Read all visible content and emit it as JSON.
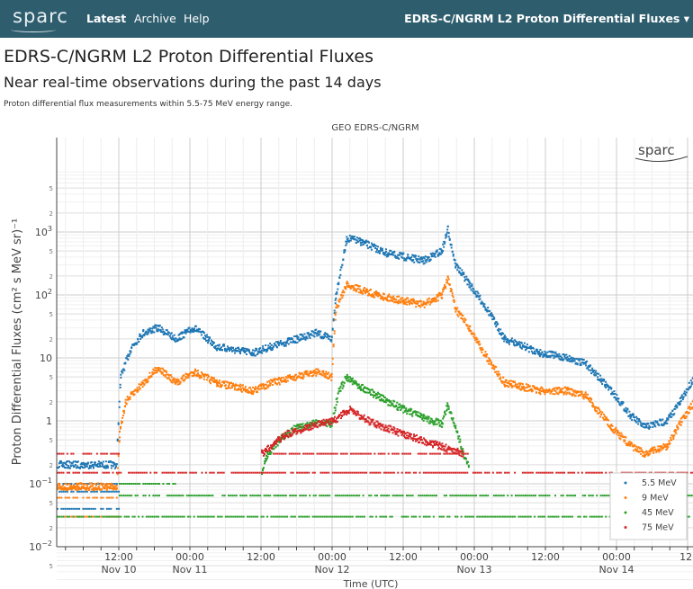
{
  "nav": {
    "logo": "sparc",
    "links": [
      "Latest",
      "Archive",
      "Help"
    ],
    "right_title": "EDRS-C/NGRM L2 Proton Differential Fluxes ▾"
  },
  "page": {
    "title": "EDRS-C/NGRM L2 Proton Differential Fluxes",
    "subtitle": "Near real-time observations during the past 14 days",
    "description": "Proton differential flux measurements within 5.5-75 MeV energy range."
  },
  "chart_data": {
    "type": "scatter",
    "title": "GEO EDRS-C/NGRM",
    "xlabel": "Time (UTC)",
    "ylabel": "Proton Differential Fluxes (cm² s MeV sr)⁻¹",
    "yscale": "log",
    "ylim": [
      0.001,
      3000
    ],
    "x_unit": "hours since Nov 10 00:00 UTC",
    "xlim": [
      1.5,
      109
    ],
    "x_ticks": [
      {
        "h": 12,
        "l1": "12:00",
        "l2": "Nov 10"
      },
      {
        "h": 24,
        "l1": "00:00",
        "l2": "Nov 11"
      },
      {
        "h": 36,
        "l1": "12:00",
        "l2": ""
      },
      {
        "h": 48,
        "l1": "00:00",
        "l2": "Nov 12"
      },
      {
        "h": 60,
        "l1": "12:00",
        "l2": ""
      },
      {
        "h": 72,
        "l1": "00:00",
        "l2": "Nov 13"
      },
      {
        "h": 84,
        "l1": "12:00",
        "l2": ""
      },
      {
        "h": 96,
        "l1": "00:00",
        "l2": "Nov 14"
      },
      {
        "h": 108,
        "l1": "12:",
        "l2": ""
      }
    ],
    "y_ticks": [
      {
        "v": 0.001,
        "b": "10",
        "e": "−3"
      },
      {
        "v": 0.01,
        "b": "10",
        "e": "−2"
      },
      {
        "v": 0.1,
        "b": "10",
        "e": "−1"
      },
      {
        "v": 1,
        "b": "1",
        "e": ""
      },
      {
        "v": 10,
        "b": "10",
        "e": ""
      },
      {
        "v": 100,
        "b": "10",
        "e": "2"
      },
      {
        "v": 1000,
        "b": "10",
        "e": "3"
      }
    ],
    "legend_position": "bottom-right",
    "grid": true,
    "watermark": "sparc",
    "series": [
      {
        "name": "5.5 MeV",
        "color": "#1f77b4",
        "points": [
          [
            1.5,
            0.2
          ],
          [
            11.5,
            0.2
          ],
          [
            11.8,
            1
          ],
          [
            12.2,
            5
          ],
          [
            14,
            15
          ],
          [
            16,
            25
          ],
          [
            18.5,
            30
          ],
          [
            21.5,
            20
          ],
          [
            24.6,
            30
          ],
          [
            28.4,
            15
          ],
          [
            34.5,
            12
          ],
          [
            37.5,
            15
          ],
          [
            42,
            20
          ],
          [
            45,
            25
          ],
          [
            47.8,
            20
          ],
          [
            48.5,
            100
          ],
          [
            50.4,
            800
          ],
          [
            52.7,
            700
          ],
          [
            57.3,
            450
          ],
          [
            63.3,
            350
          ],
          [
            66.4,
            500
          ],
          [
            67.4,
            1100
          ],
          [
            68.7,
            300
          ],
          [
            71,
            150
          ],
          [
            74,
            60
          ],
          [
            77,
            20
          ],
          [
            83,
            12
          ],
          [
            87.6,
            10
          ],
          [
            90.7,
            8
          ],
          [
            95,
            3
          ],
          [
            98.3,
            1.2
          ],
          [
            100.6,
            0.8
          ],
          [
            104.4,
            1
          ],
          [
            106.6,
            2
          ],
          [
            109,
            5
          ]
        ],
        "baselines": [
          [
            0.04,
            1.5,
            12
          ],
          [
            0.075,
            1.5,
            12
          ],
          [
            0.1,
            1.5,
            12
          ]
        ]
      },
      {
        "name": "9 MeV",
        "color": "#ff7f0e",
        "points": [
          [
            1.5,
            0.09
          ],
          [
            11.5,
            0.09
          ],
          [
            12,
            0.6
          ],
          [
            13,
            2
          ],
          [
            16,
            4
          ],
          [
            18.5,
            7
          ],
          [
            21.5,
            4
          ],
          [
            24.6,
            6
          ],
          [
            28.4,
            4
          ],
          [
            34.5,
            3
          ],
          [
            37.5,
            4
          ],
          [
            42,
            5
          ],
          [
            45,
            6
          ],
          [
            47.8,
            5
          ],
          [
            48.5,
            60
          ],
          [
            50.4,
            150
          ],
          [
            52.7,
            120
          ],
          [
            57.3,
            90
          ],
          [
            63.3,
            70
          ],
          [
            66.4,
            100
          ],
          [
            67.4,
            180
          ],
          [
            68.7,
            60
          ],
          [
            71,
            30
          ],
          [
            74,
            10
          ],
          [
            77,
            4
          ],
          [
            83,
            3
          ],
          [
            87.6,
            3
          ],
          [
            90.7,
            2.5
          ],
          [
            95,
            0.8
          ],
          [
            98.3,
            0.4
          ],
          [
            100.6,
            0.3
          ],
          [
            104.4,
            0.4
          ],
          [
            106.6,
            0.9
          ],
          [
            109,
            2
          ]
        ],
        "baselines": [
          [
            0.03,
            1.5,
            12
          ],
          [
            0.06,
            1.5,
            12
          ],
          [
            0.085,
            1.5,
            12
          ]
        ]
      },
      {
        "name": "45 MeV",
        "color": "#2ca02c",
        "points": [
          [
            36,
            0.15
          ],
          [
            37,
            0.3
          ],
          [
            39,
            0.5
          ],
          [
            42,
            0.8
          ],
          [
            45,
            0.9
          ],
          [
            47.8,
            0.9
          ],
          [
            49,
            3
          ],
          [
            50.4,
            5
          ],
          [
            52.7,
            3.5
          ],
          [
            57.3,
            2
          ],
          [
            63.3,
            1.1
          ],
          [
            66.4,
            0.9
          ],
          [
            67.4,
            1.8
          ],
          [
            68.7,
            0.8
          ],
          [
            70,
            0.3
          ],
          [
            71,
            0.2
          ]
        ],
        "baselines": [
          [
            0.03,
            1.5,
            109
          ],
          [
            0.065,
            12,
            109
          ],
          [
            0.1,
            12,
            22
          ]
        ]
      },
      {
        "name": "75 MeV",
        "color": "#d62728",
        "points": [
          [
            36,
            0.3
          ],
          [
            40,
            0.6
          ],
          [
            44,
            0.8
          ],
          [
            48,
            1
          ],
          [
            51,
            1.5
          ],
          [
            54,
            1
          ],
          [
            60,
            0.6
          ],
          [
            66,
            0.4
          ],
          [
            70,
            0.3
          ]
        ],
        "baselines": [
          [
            0.15,
            1.5,
            109
          ],
          [
            0.3,
            1.5,
            12
          ],
          [
            0.3,
            38,
            71
          ]
        ]
      }
    ]
  }
}
